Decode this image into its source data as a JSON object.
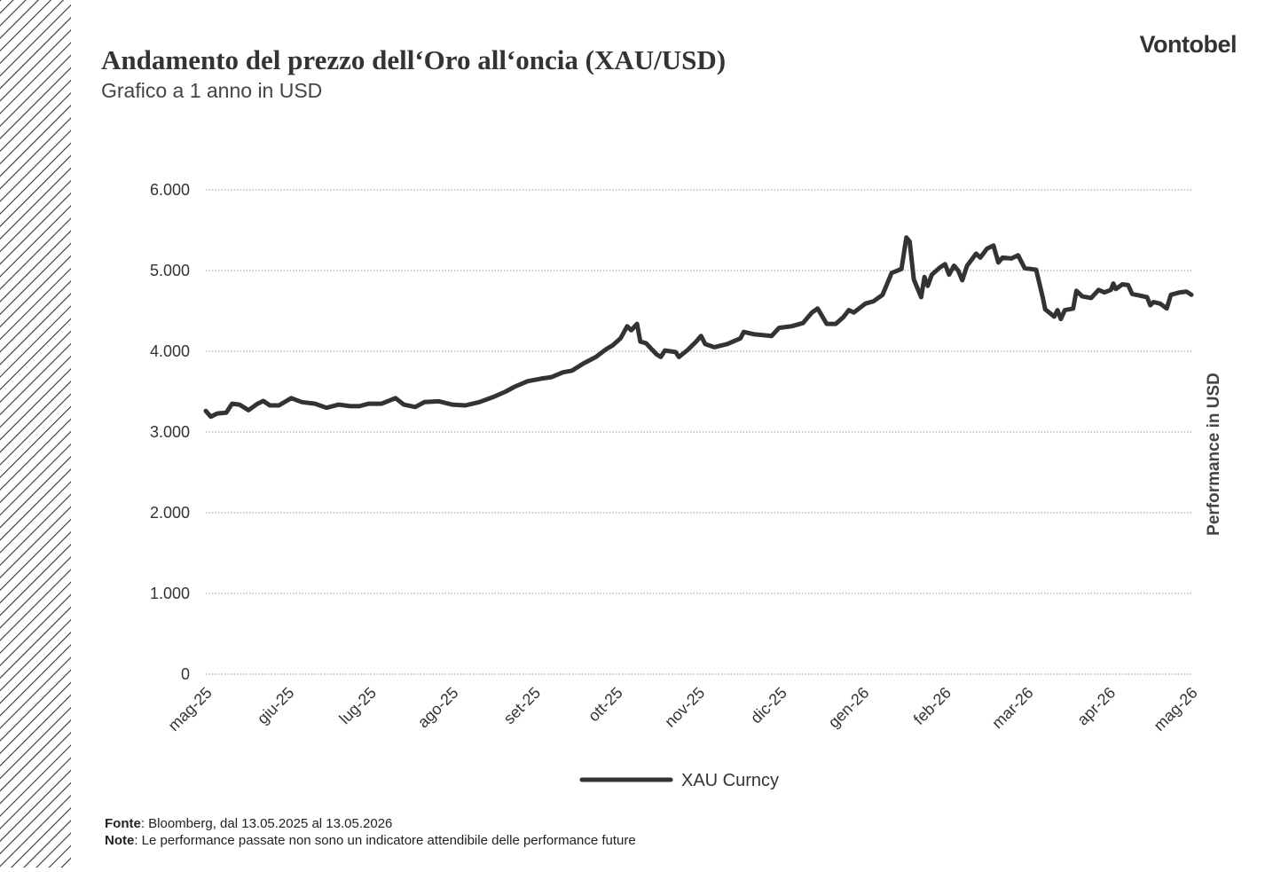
{
  "brand": "Vontobel",
  "footnotes": {
    "source_label": "Fonte",
    "source_text": ": Bloomberg, dal 13.05.2025 al 13.05.2026",
    "note_label": "Note",
    "note_text": ": Le performance passate non sono un indicatore attendibile delle performance future"
  },
  "chart_data": {
    "type": "line",
    "title": "Andamento del prezzo dell‘Oro all‘oncia (XAU/USD)",
    "subtitle": "Grafico a 1 anno in USD",
    "y_label": "Performance in USD",
    "grid": true,
    "xlim": [
      0,
      12
    ],
    "xticks": [
      {
        "value": 0,
        "label": "mag-25"
      },
      {
        "value": 1,
        "label": "giu-25"
      },
      {
        "value": 2,
        "label": "lug-25"
      },
      {
        "value": 3,
        "label": "ago-25"
      },
      {
        "value": 4,
        "label": "set-25"
      },
      {
        "value": 5,
        "label": "ott-25"
      },
      {
        "value": 6,
        "label": "nov-25"
      },
      {
        "value": 7,
        "label": "dic-25"
      },
      {
        "value": 8,
        "label": "gen-26"
      },
      {
        "value": 9,
        "label": "feb-26"
      },
      {
        "value": 10,
        "label": "mar-26"
      },
      {
        "value": 11,
        "label": "apr-26"
      },
      {
        "value": 12,
        "label": "mag-26"
      }
    ],
    "ylim": [
      0,
      6000
    ],
    "yticks": [
      0,
      {
        "value": 1000,
        "label": "1.000"
      },
      {
        "value": 2000,
        "label": "2.000"
      },
      {
        "value": 3000,
        "label": "3.000"
      },
      {
        "value": 4000,
        "label": "4.000"
      },
      {
        "value": 5000,
        "label": "5.000"
      },
      {
        "value": 6000,
        "label": "6.000"
      }
    ],
    "x": [
      0,
      0.06,
      0.14,
      0.25,
      0.32,
      0.41,
      0.52,
      0.63,
      0.7,
      0.78,
      0.89,
      1.04,
      1.17,
      1.33,
      1.47,
      1.62,
      1.76,
      1.87,
      1.98,
      2.14,
      2.31,
      2.41,
      2.55,
      2.66,
      2.84,
      3.0,
      3.16,
      3.33,
      3.49,
      3.65,
      3.76,
      3.92,
      4.08,
      4.21,
      4.35,
      4.46,
      4.6,
      4.75,
      4.88,
      4.95,
      5.05,
      5.13,
      5.18,
      5.25,
      5.29,
      5.36,
      5.49,
      5.54,
      5.59,
      5.72,
      5.76,
      5.86,
      5.97,
      6.03,
      6.08,
      6.19,
      6.35,
      6.51,
      6.55,
      6.68,
      6.78,
      6.89,
      6.98,
      7.13,
      7.27,
      7.38,
      7.45,
      7.56,
      7.67,
      7.76,
      7.83,
      7.89,
      8.03,
      8.13,
      8.24,
      8.35,
      8.47,
      8.53,
      8.57,
      8.62,
      8.71,
      8.75,
      8.79,
      8.84,
      8.94,
      9.0,
      9.05,
      9.11,
      9.16,
      9.21,
      9.27,
      9.38,
      9.43,
      9.51,
      9.59,
      9.65,
      9.7,
      9.81,
      9.89,
      9.97,
      10.11,
      10.19,
      10.22,
      10.33,
      10.37,
      10.41,
      10.46,
      10.56,
      10.6,
      10.67,
      10.78,
      10.87,
      10.94,
      11.02,
      11.05,
      11.08,
      11.16,
      11.23,
      11.28,
      11.37,
      11.46,
      11.5,
      11.54,
      11.62,
      11.7,
      11.75,
      11.86,
      11.94,
      12.0
    ],
    "series": [
      {
        "name": "XAU Curncy",
        "color": "#333333",
        "values": [
          3260,
          3190,
          3230,
          3240,
          3350,
          3340,
          3270,
          3350,
          3385,
          3330,
          3330,
          3420,
          3370,
          3350,
          3300,
          3340,
          3320,
          3320,
          3350,
          3350,
          3420,
          3340,
          3310,
          3370,
          3380,
          3340,
          3330,
          3370,
          3430,
          3500,
          3560,
          3630,
          3660,
          3680,
          3740,
          3760,
          3850,
          3930,
          4030,
          4070,
          4160,
          4310,
          4260,
          4340,
          4120,
          4100,
          3960,
          3930,
          4010,
          3990,
          3930,
          4010,
          4120,
          4190,
          4090,
          4050,
          4090,
          4160,
          4240,
          4210,
          4200,
          4190,
          4290,
          4310,
          4350,
          4480,
          4530,
          4340,
          4340,
          4420,
          4510,
          4480,
          4590,
          4620,
          4700,
          4970,
          5020,
          5410,
          5360,
          4890,
          4670,
          4920,
          4810,
          4950,
          5040,
          5080,
          4950,
          5060,
          5000,
          4880,
          5060,
          5210,
          5160,
          5270,
          5310,
          5100,
          5160,
          5150,
          5190,
          5030,
          5010,
          4670,
          4520,
          4430,
          4510,
          4400,
          4510,
          4530,
          4750,
          4680,
          4660,
          4760,
          4730,
          4760,
          4840,
          4770,
          4830,
          4820,
          4710,
          4690,
          4670,
          4570,
          4610,
          4590,
          4530,
          4700,
          4730,
          4740,
          4700
        ]
      }
    ]
  }
}
